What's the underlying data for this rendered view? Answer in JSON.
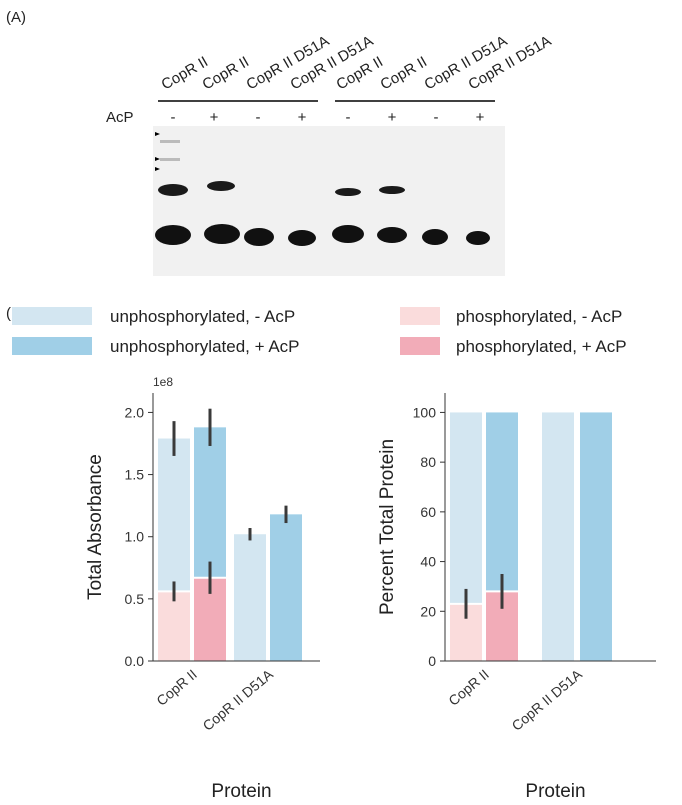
{
  "panel_a": {
    "label": "(A)",
    "lanes": [
      "CopR II",
      "CopR II",
      "CopR II D51A",
      "CopR II D51A",
      "CopR II",
      "CopR II",
      "CopR II D51A",
      "CopR II D51A"
    ],
    "treatment_label": "AcP",
    "treatments": [
      "-",
      "+",
      "-",
      "+",
      "-",
      "+",
      "-",
      "+"
    ]
  },
  "panel_b": {
    "label": "(B)"
  },
  "chart_data": [
    {
      "type": "bar",
      "ylabel": "Total Absorbance",
      "xlabel": "Protein",
      "y_offset_label": "1e8",
      "categories": [
        "CopR II",
        "CopR II D51A"
      ],
      "series": [
        {
          "name": "unphosphorylated, - AcP",
          "color": "#d3e6f1",
          "values": [
            1.23,
            1.02
          ],
          "errors": [
            0.14,
            0.05
          ]
        },
        {
          "name": "unphosphorylated, + AcP",
          "color": "#a0cfe7",
          "values": [
            1.21,
            1.18
          ],
          "errors": [
            0.15,
            0.07
          ]
        },
        {
          "name": "phosphorylated, - AcP",
          "color": "#fadcdc",
          "values": [
            0.56,
            null
          ],
          "errors": [
            0.08,
            null
          ]
        },
        {
          "name": "phosphorylated, + AcP",
          "color": "#f2acb8",
          "values": [
            0.67,
            null
          ],
          "errors": [
            0.13,
            null
          ]
        }
      ],
      "ylim": [
        0,
        2.1
      ],
      "yticks": [
        {
          "value": 0,
          "label": "0.0"
        },
        {
          "value": 0.5,
          "label": "0.5"
        },
        {
          "value": 1,
          "label": "1.0"
        },
        {
          "value": 1.5,
          "label": "1.5"
        },
        {
          "value": 2,
          "label": "2.0"
        }
      ]
    },
    {
      "type": "bar",
      "ylabel": "Percent Total Protein",
      "xlabel": "Protein",
      "categories": [
        "CopR II",
        "CopR II D51A"
      ],
      "series": [
        {
          "values": [
            77,
            100
          ],
          "errors": [
            null,
            null
          ]
        },
        {
          "values": [
            72,
            100
          ],
          "errors": [
            null,
            null
          ]
        },
        {
          "values": [
            23,
            null
          ],
          "errors": [
            6,
            null
          ]
        },
        {
          "values": [
            28,
            null
          ],
          "errors": [
            7,
            null
          ]
        }
      ],
      "ylim": [
        0,
        105
      ],
      "yticks": [
        0,
        20,
        40,
        60,
        80,
        100
      ]
    }
  ]
}
